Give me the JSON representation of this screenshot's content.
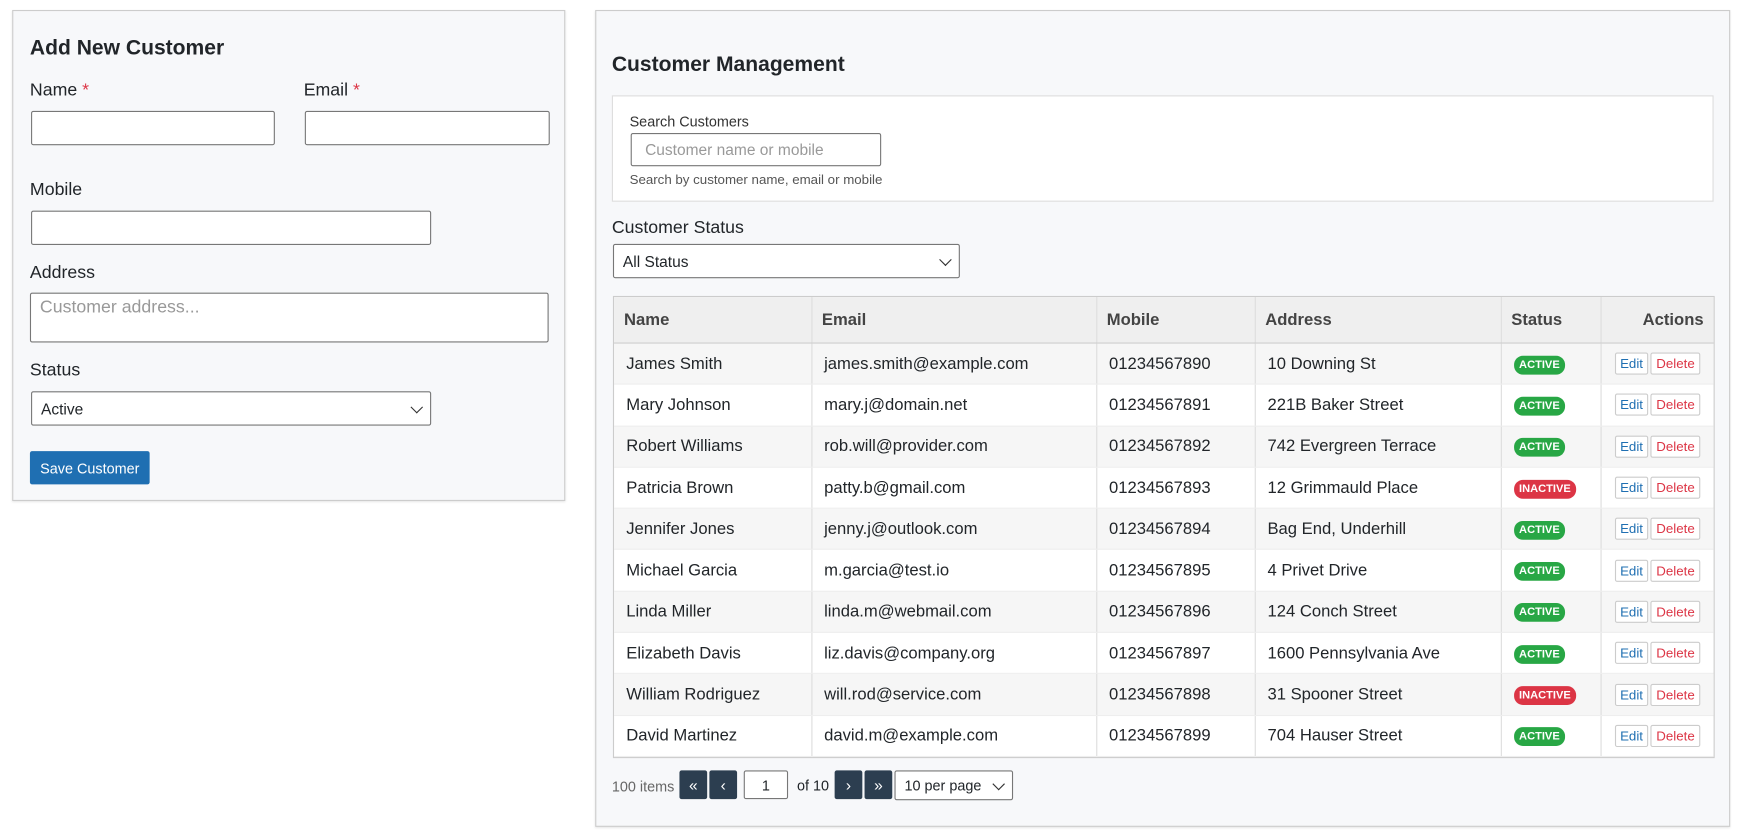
{
  "form": {
    "title": "Add New Customer",
    "required_mark": "*",
    "name_label": "Name",
    "email_label": "Email",
    "mobile_label": "Mobile",
    "address_label": "Address",
    "address_placeholder": "Customer address...",
    "status_label": "Status",
    "status_value": "Active",
    "save_button": "Save Customer"
  },
  "management": {
    "title": "Customer Management",
    "search_label": "Search Customers",
    "search_placeholder": "Customer name or mobile",
    "search_help": "Search by customer name, email or mobile",
    "status_filter_label": "Customer Status",
    "status_filter_value": "All Status"
  },
  "table": {
    "headers": [
      "Name",
      "Email",
      "Mobile",
      "Address",
      "Status",
      "Actions"
    ],
    "actions": [
      "Edit",
      "Delete"
    ],
    "rows": [
      [
        "James Smith",
        "james.smith@example.com",
        "01234567890",
        "10 Downing St",
        "ACTIVE"
      ],
      [
        "Mary Johnson",
        "mary.j@domain.net",
        "01234567891",
        "221B Baker Street",
        "ACTIVE"
      ],
      [
        "Robert Williams",
        "rob.will@provider.com",
        "01234567892",
        "742 Evergreen Terrace",
        "ACTIVE"
      ],
      [
        "Patricia Brown",
        "patty.b@gmail.com",
        "01234567893",
        "12 Grimmauld Place",
        "INACTIVE"
      ],
      [
        "Jennifer Jones",
        "jenny.j@outlook.com",
        "01234567894",
        "Bag End, Underhill",
        "ACTIVE"
      ],
      [
        "Michael Garcia",
        "m.garcia@test.io",
        "01234567895",
        "4 Privet Drive",
        "ACTIVE"
      ],
      [
        "Linda Miller",
        "linda.m@webmail.com",
        "01234567896",
        "124 Conch Street",
        "ACTIVE"
      ],
      [
        "Elizabeth Davis",
        "liz.davis@company.org",
        "01234567897",
        "1600 Pennsylvania Ave",
        "ACTIVE"
      ],
      [
        "William Rodriguez",
        "will.rod@service.com",
        "01234567898",
        "31 Spooner Street",
        "INACTIVE"
      ],
      [
        "David Martinez",
        "david.m@example.com",
        "01234567899",
        "704 Hauser Street",
        "ACTIVE"
      ]
    ]
  },
  "pagination": {
    "total": "100 items",
    "first": "«",
    "prev": "‹",
    "page": "1",
    "of_pages": "of 10",
    "next": "›",
    "last": "»",
    "per_page": "10 per page"
  }
}
